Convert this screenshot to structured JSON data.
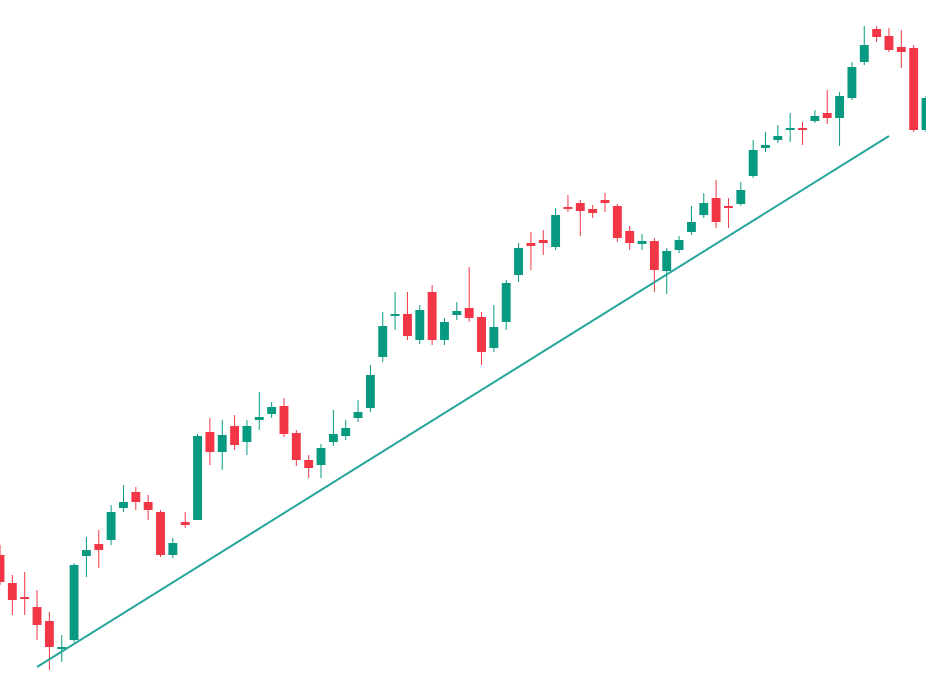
{
  "chart_data": {
    "type": "candlestick",
    "up_color": "#089981",
    "down_color": "#f23645",
    "ylim": [
      0,
      694
    ],
    "open": [
      139,
      111,
      97,
      87,
      73,
      45,
      54,
      138,
      150,
      154,
      186,
      202,
      192,
      182,
      139,
      172,
      174,
      262,
      242,
      268,
      252,
      274,
      280,
      288,
      261,
      234,
      229,
      252,
      258,
      276,
      286,
      337,
      378,
      380,
      354,
      402,
      354,
      379,
      386,
      377,
      346,
      372,
      419,
      451,
      454,
      447,
      487,
      491,
      485,
      494,
      488,
      463,
      450,
      453,
      423,
      444,
      462,
      479,
      496,
      488,
      490,
      518,
      546,
      554,
      564,
      566,
      573,
      581,
      576,
      596,
      632,
      665,
      658,
      647,
      646,
      564
    ],
    "high": [
      149,
      119,
      122,
      104,
      82,
      59,
      131,
      157,
      164,
      189,
      209,
      207,
      199,
      184,
      156,
      182,
      260,
      276,
      274,
      279,
      274,
      302,
      292,
      296,
      264,
      239,
      250,
      284,
      274,
      294,
      329,
      382,
      402,
      402,
      389,
      409,
      376,
      392,
      427,
      382,
      389,
      414,
      451,
      462,
      464,
      486,
      499,
      494,
      489,
      501,
      490,
      468,
      460,
      456,
      446,
      458,
      488,
      501,
      514,
      496,
      512,
      554,
      562,
      569,
      581,
      572,
      584,
      604,
      602,
      632,
      668,
      668,
      666,
      664,
      649,
      598
    ],
    "low": [
      109,
      79,
      79,
      54,
      24,
      32,
      52,
      117,
      126,
      149,
      182,
      184,
      174,
      137,
      136,
      166,
      174,
      229,
      224,
      244,
      239,
      264,
      276,
      257,
      228,
      216,
      216,
      248,
      254,
      272,
      282,
      332,
      364,
      354,
      350,
      349,
      349,
      374,
      372,
      329,
      342,
      364,
      412,
      424,
      439,
      444,
      482,
      458,
      476,
      482,
      452,
      444,
      444,
      402,
      400,
      441,
      459,
      476,
      466,
      466,
      488,
      516,
      542,
      551,
      552,
      549,
      571,
      570,
      548,
      594,
      629,
      652,
      642,
      626,
      562,
      562
    ],
    "close": [
      112,
      94,
      95,
      69,
      47,
      47,
      129,
      144,
      144,
      182,
      192,
      192,
      184,
      139,
      151,
      169,
      258,
      242,
      259,
      249,
      268,
      277,
      287,
      260,
      234,
      226,
      246,
      260,
      266,
      282,
      319,
      368,
      380,
      358,
      384,
      354,
      372,
      383,
      376,
      342,
      367,
      411,
      446,
      448,
      451,
      479,
      485,
      483,
      481,
      491,
      456,
      451,
      453,
      424,
      443,
      454,
      472,
      491,
      472,
      486,
      504,
      544,
      549,
      558,
      566,
      564,
      578,
      576,
      598,
      627,
      649,
      657,
      644,
      642,
      564,
      596
    ],
    "trendline": {
      "x": [
        3,
        72
      ],
      "values": [
        27,
        558
      ],
      "color": "#26a69a"
    }
  }
}
